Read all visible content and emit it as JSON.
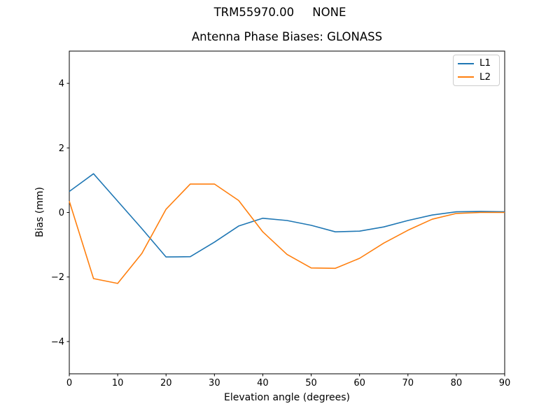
{
  "figure": {
    "suptitle": "TRM55970.00     NONE",
    "background": "#ffffff"
  },
  "chart_data": {
    "type": "line",
    "title": "Antenna Phase Biases: GLONASS",
    "xlabel": "Elevation angle (degrees)",
    "ylabel": "Bias (mm)",
    "xlim": [
      0,
      90
    ],
    "ylim": [
      -5,
      5
    ],
    "xticks": [
      0,
      10,
      20,
      30,
      40,
      50,
      60,
      70,
      80,
      90
    ],
    "yticks": [
      -4,
      -2,
      0,
      2,
      4
    ],
    "grid": false,
    "legend_position": "upper right",
    "x": [
      0,
      5,
      10,
      15,
      20,
      25,
      30,
      35,
      40,
      45,
      50,
      55,
      60,
      65,
      70,
      75,
      80,
      85,
      90
    ],
    "series": [
      {
        "name": "L1",
        "color": "#1f77b4",
        "values": [
          0.65,
          1.2,
          0.35,
          -0.5,
          -1.38,
          -1.37,
          -0.92,
          -0.42,
          -0.18,
          -0.25,
          -0.4,
          -0.6,
          -0.58,
          -0.45,
          -0.25,
          -0.08,
          0.02,
          0.03,
          0.02
        ]
      },
      {
        "name": "L2",
        "color": "#ff7f0e",
        "values": [
          0.35,
          -2.05,
          -2.2,
          -1.27,
          0.1,
          0.88,
          0.88,
          0.37,
          -0.6,
          -1.3,
          -1.72,
          -1.73,
          -1.42,
          -0.95,
          -0.55,
          -0.21,
          -0.03,
          0.0,
          0.0
        ]
      }
    ]
  }
}
